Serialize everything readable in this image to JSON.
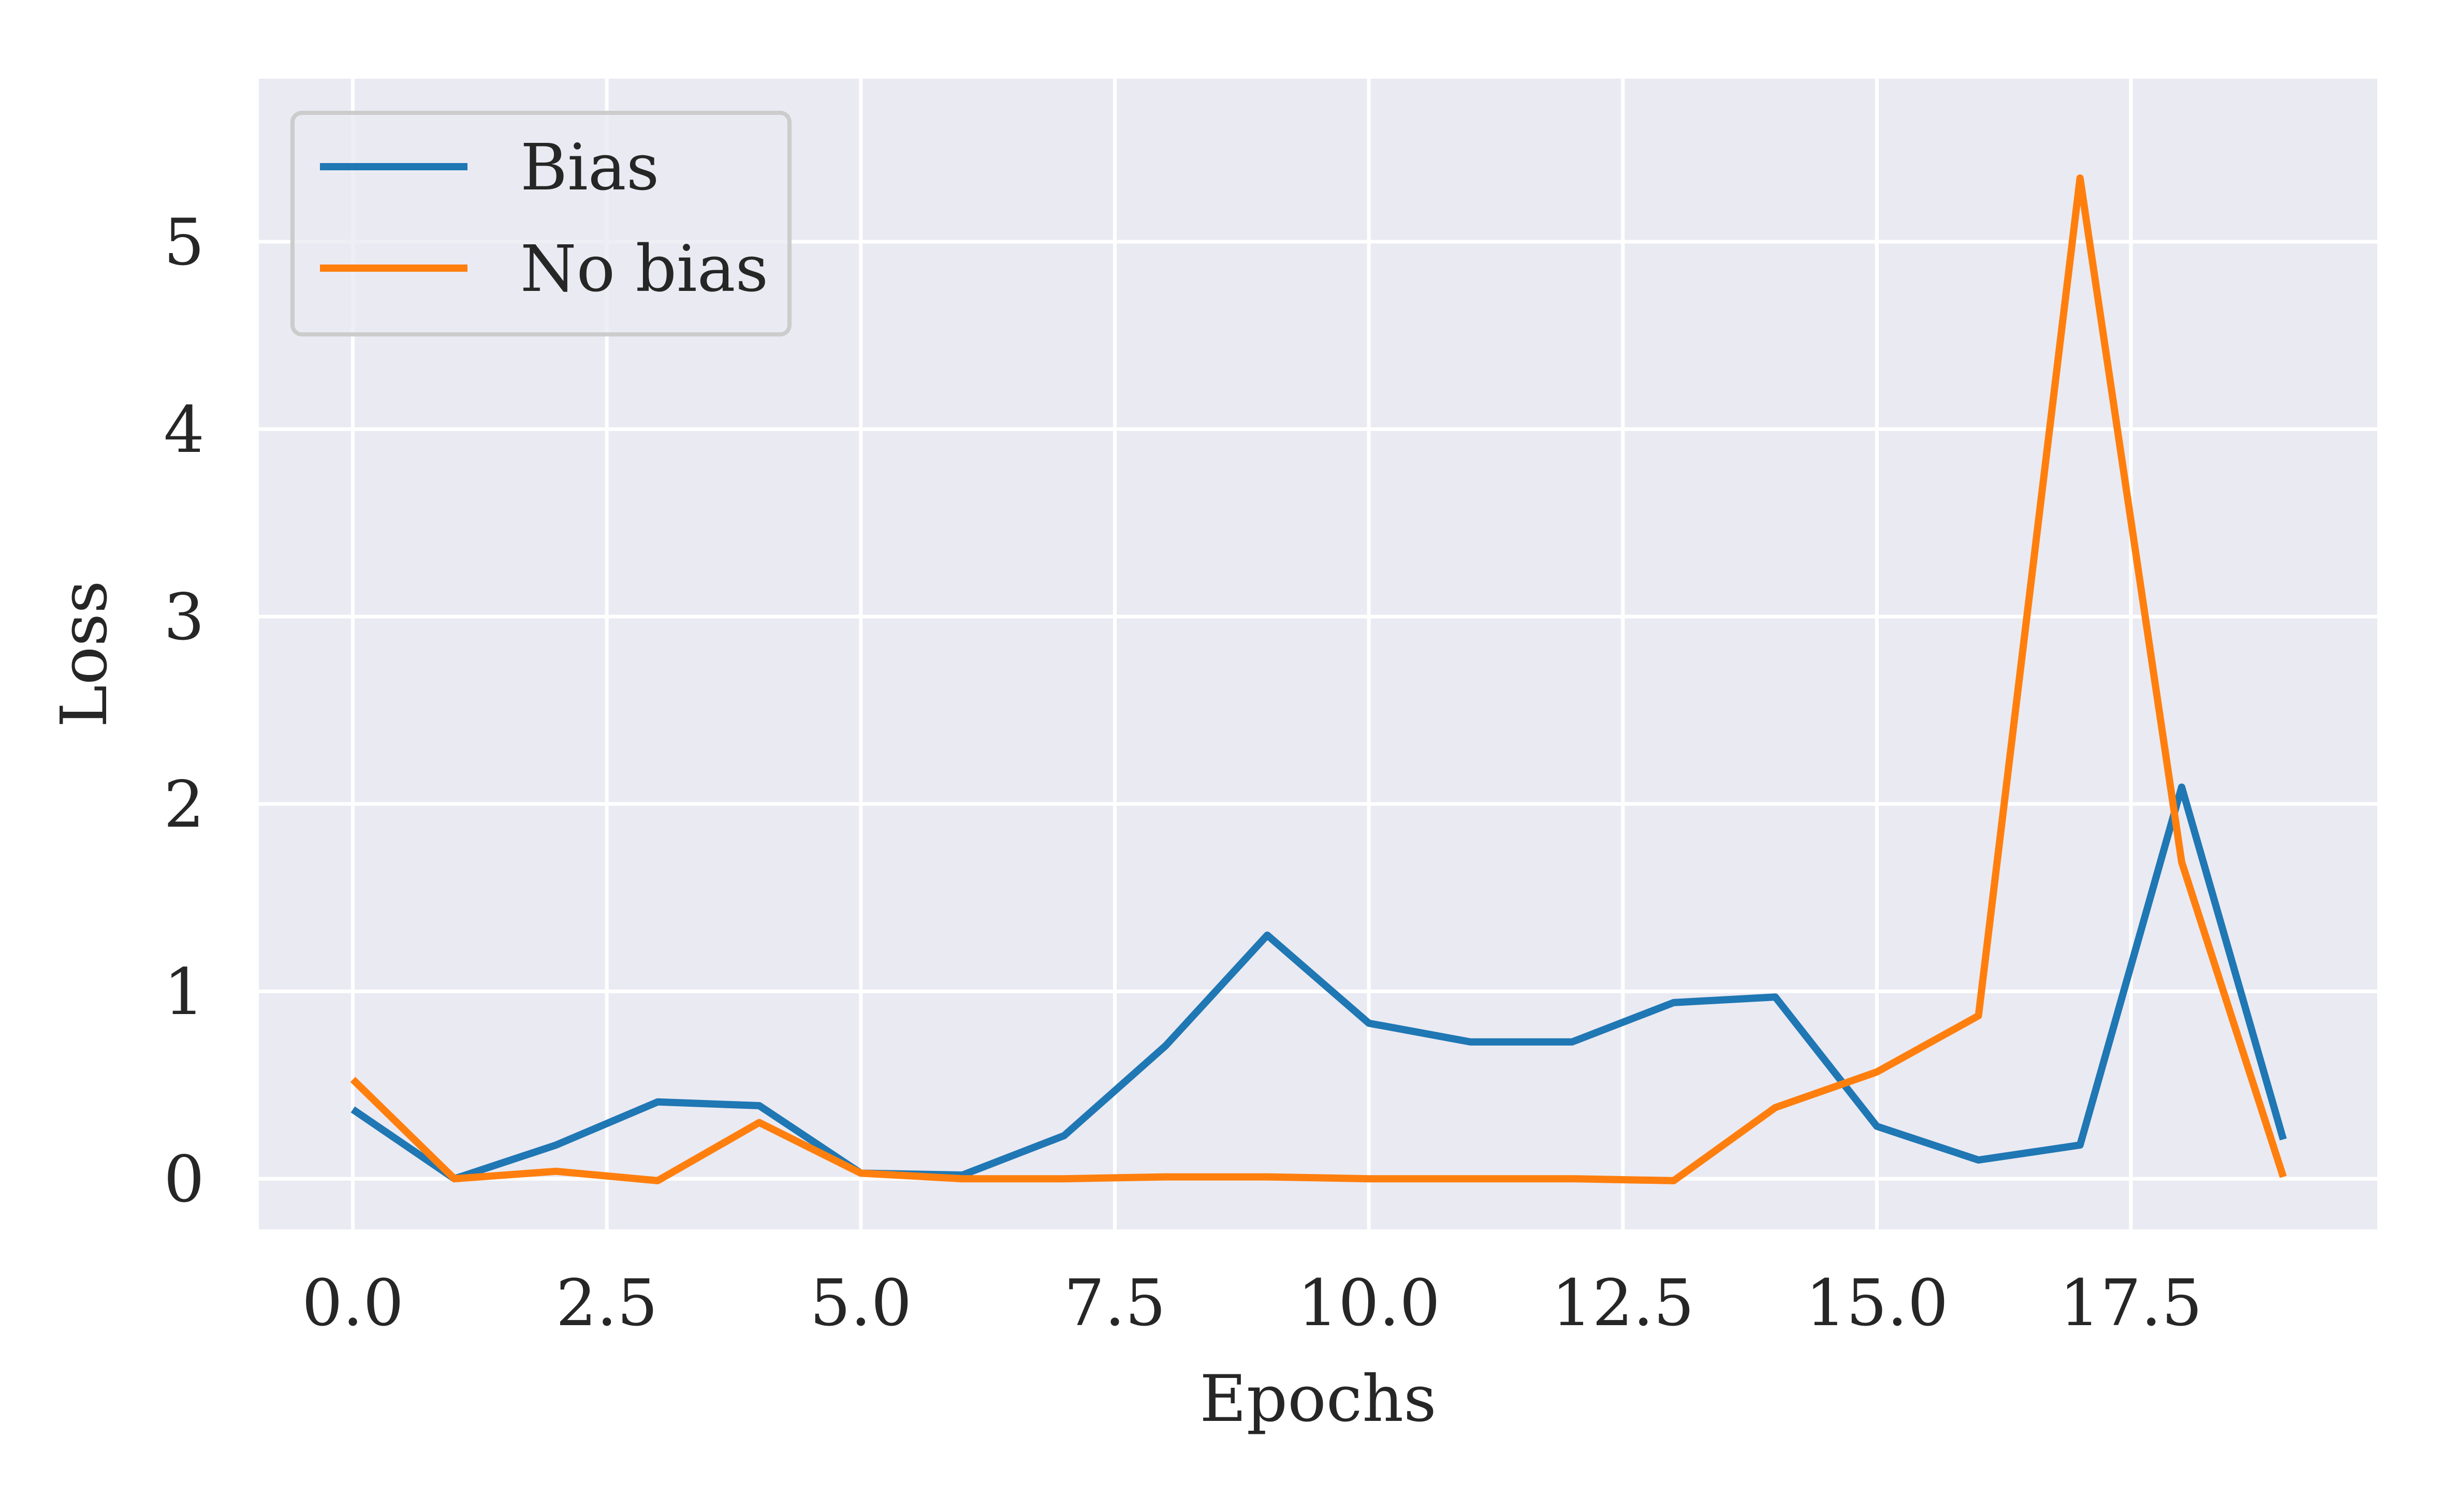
{
  "chart_data": {
    "type": "line",
    "title": "",
    "xlabel": "Epochs",
    "ylabel": "Loss",
    "xlim": [
      -0.925,
      19.925
    ],
    "ylim": [
      -0.27,
      5.87
    ],
    "xticks": [
      0.0,
      2.5,
      5.0,
      7.5,
      10.0,
      12.5,
      15.0,
      17.5
    ],
    "xtick_labels": [
      "0.0",
      "2.5",
      "5.0",
      "7.5",
      "10.0",
      "12.5",
      "15.0",
      "17.5"
    ],
    "yticks": [
      0,
      1,
      2,
      3,
      4,
      5
    ],
    "ytick_labels": [
      "0",
      "1",
      "2",
      "3",
      "4",
      "5"
    ],
    "grid": true,
    "legend_position": "top-left",
    "x": [
      0,
      1,
      2,
      3,
      4,
      5,
      6,
      7,
      8,
      9,
      10,
      11,
      12,
      13,
      14,
      15,
      16,
      17,
      18,
      19
    ],
    "series": [
      {
        "name": "Bias",
        "color": "#1f77b4",
        "values": [
          0.37,
          0.0,
          0.18,
          0.41,
          0.39,
          0.03,
          0.02,
          0.23,
          0.71,
          1.3,
          0.83,
          0.73,
          0.73,
          0.94,
          0.97,
          0.28,
          0.1,
          0.18,
          2.09,
          0.21
        ]
      },
      {
        "name": "No bias",
        "color": "#ff7f0e",
        "values": [
          0.53,
          0.0,
          0.04,
          -0.01,
          0.3,
          0.03,
          0.0,
          0.0,
          0.01,
          0.01,
          0.0,
          0.0,
          0.0,
          -0.01,
          0.38,
          0.57,
          0.87,
          5.34,
          1.69,
          0.01
        ]
      }
    ],
    "colors": {
      "plot_background": "#eaeaf2",
      "grid": "#ffffff",
      "legend_border": "#cccccc"
    }
  }
}
